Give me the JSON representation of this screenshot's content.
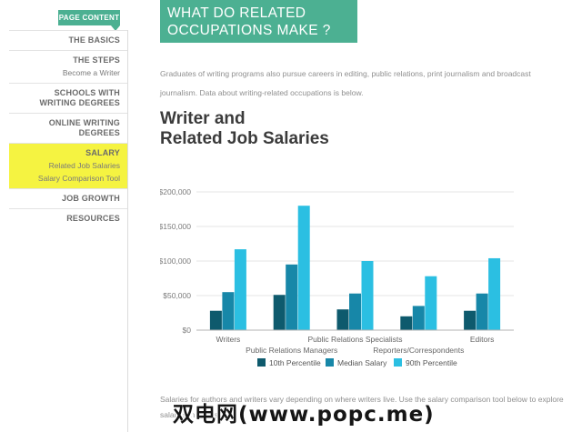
{
  "colors": {
    "accent_green": "#4cb092",
    "active_yellow": "#f5f341",
    "bar_dark": "#0e5a6d",
    "bar_medium": "#1787a8",
    "bar_light": "#2bbfe2"
  },
  "sidebar": {
    "button_label": "PAGE CONTENT",
    "items": [
      {
        "label": "THE BASICS",
        "sub": []
      },
      {
        "label": "THE STEPS",
        "sub": [
          "Become a Writer"
        ]
      },
      {
        "label": "SCHOOLS WITH WRITING DEGREES",
        "sub": []
      },
      {
        "label": "ONLINE WRITING DEGREES",
        "sub": []
      },
      {
        "label": "SALARY",
        "sub": [
          "Related Job Salaries",
          "Salary Comparison Tool"
        ],
        "active": true
      },
      {
        "label": "JOB GROWTH",
        "sub": []
      },
      {
        "label": "RESOURCES",
        "sub": []
      }
    ]
  },
  "header": {
    "line1": "WHAT DO RELATED",
    "line2": "OCCUPATIONS MAKE ?"
  },
  "intro_text": "Graduates of writing programs also pursue careers in editing, public relations, print journalism and broadcast journalism. Data about writing-related occupations is below.",
  "section_title": {
    "line1": "Writer and",
    "line2": "Related Job Salaries"
  },
  "chart_data": {
    "type": "bar",
    "title": "Writer and Related Job Salaries",
    "categories": [
      "Writers",
      "Public Relations Managers",
      "Public Relations Specialists",
      "Reporters/Correspondents",
      "Editors"
    ],
    "series": [
      {
        "name": "10th Percentile",
        "color": "#0e5a6d",
        "values": [
          28000,
          51000,
          30000,
          20000,
          28000
        ]
      },
      {
        "name": "Median Salary",
        "color": "#1787a8",
        "values": [
          55000,
          95000,
          53000,
          35000,
          53000
        ]
      },
      {
        "name": "90th Percentile",
        "color": "#2bbfe2",
        "values": [
          117000,
          180000,
          100000,
          78000,
          104000
        ]
      }
    ],
    "xlabel": "",
    "ylabel": "",
    "ylim": [
      0,
      200000
    ],
    "ytick_labels": [
      "$0",
      "$50,000",
      "$100,000",
      "$150,000",
      "$200,000"
    ],
    "grid": true,
    "legend_position": "bottom"
  },
  "footer": {
    "line1": "Salaries for authors and writers vary depending on where writers live. Use the salary comparison tool below to explore",
    "line2": "salaries in your state."
  },
  "watermark_text": "双电网(www.popc.me)"
}
